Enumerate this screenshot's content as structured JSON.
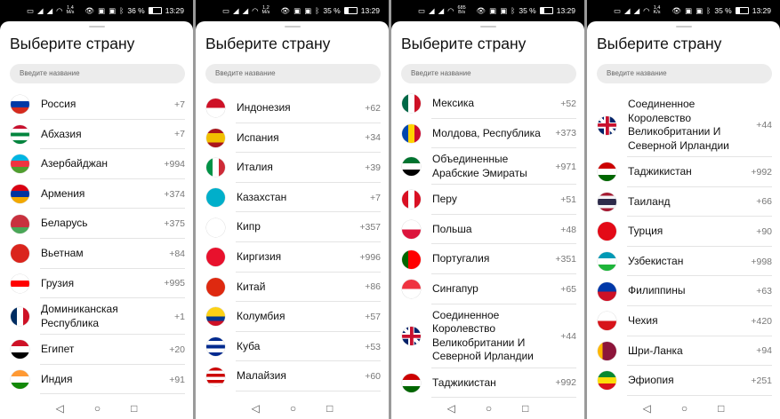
{
  "title": "Выберите страну",
  "search_placeholder": "Введите название",
  "nav": {
    "back": "◁",
    "home": "○",
    "recents": "□"
  },
  "panels": [
    {
      "status": {
        "speed_value": "1,4",
        "speed_unit": "M/s",
        "battery": "36 %",
        "battery_level": 36,
        "time": "13:29"
      },
      "list_offset": 0,
      "countries": [
        {
          "name": "Россия",
          "code": "+7",
          "flag": {
            "dir": "h",
            "colors": [
              "#ffffff",
              "#0039a6",
              "#d52b1e"
            ]
          }
        },
        {
          "name": "Абхазия",
          "code": "+7",
          "flag": {
            "dir": "h",
            "colors": [
              "#c8102e",
              "#ffffff",
              "#00843d",
              "#ffffff",
              "#00843d"
            ]
          }
        },
        {
          "name": "Азербайджан",
          "code": "+994",
          "flag": {
            "dir": "h",
            "colors": [
              "#00b5e2",
              "#ef3340",
              "#509e2f"
            ]
          }
        },
        {
          "name": "Армения",
          "code": "+374",
          "flag": {
            "dir": "h",
            "colors": [
              "#d90012",
              "#0033a0",
              "#f2a800"
            ]
          }
        },
        {
          "name": "Беларусь",
          "code": "+375",
          "flag": {
            "dir": "h",
            "colors": [
              "#c8313e",
              "#c8313e",
              "#4aa657"
            ]
          }
        },
        {
          "name": "Вьетнам",
          "code": "+84",
          "flag": {
            "dir": "h",
            "colors": [
              "#da251d"
            ]
          }
        },
        {
          "name": "Грузия",
          "code": "+995",
          "flag": {
            "dir": "h",
            "colors": [
              "#ffffff",
              "#ff0000",
              "#ffffff"
            ]
          }
        },
        {
          "name": "Доминиканская Республика",
          "code": "+1",
          "flag": {
            "dir": "v",
            "colors": [
              "#002d62",
              "#ffffff",
              "#ce1126"
            ]
          }
        },
        {
          "name": "Египет",
          "code": "+20",
          "flag": {
            "dir": "h",
            "colors": [
              "#ce1126",
              "#ffffff",
              "#000000"
            ]
          }
        },
        {
          "name": "Индия",
          "code": "+91",
          "flag": {
            "dir": "h",
            "colors": [
              "#ff9933",
              "#ffffff",
              "#138808"
            ]
          }
        }
      ]
    },
    {
      "status": {
        "speed_value": "1,2",
        "speed_unit": "M/s",
        "battery": "35 %",
        "battery_level": 35,
        "time": "13:29"
      },
      "list_offset": 4,
      "countries": [
        {
          "name": "Индонезия",
          "code": "+62",
          "flag": {
            "dir": "h",
            "colors": [
              "#ce1126",
              "#ffffff"
            ]
          }
        },
        {
          "name": "Испания",
          "code": "+34",
          "flag": {
            "dir": "h",
            "colors": [
              "#aa151b",
              "#f1bf00",
              "#f1bf00",
              "#aa151b"
            ]
          }
        },
        {
          "name": "Италия",
          "code": "+39",
          "flag": {
            "dir": "v",
            "colors": [
              "#009246",
              "#ffffff",
              "#ce2b37"
            ]
          }
        },
        {
          "name": "Казахстан",
          "code": "+7",
          "flag": {
            "dir": "h",
            "colors": [
              "#00afca"
            ]
          }
        },
        {
          "name": "Кипр",
          "code": "+357",
          "flag": {
            "dir": "h",
            "colors": [
              "#ffffff"
            ]
          }
        },
        {
          "name": "Киргизия",
          "code": "+996",
          "flag": {
            "dir": "h",
            "colors": [
              "#e8112d"
            ]
          }
        },
        {
          "name": "Китай",
          "code": "+86",
          "flag": {
            "dir": "h",
            "colors": [
              "#de2910"
            ]
          }
        },
        {
          "name": "Колумбия",
          "code": "+57",
          "flag": {
            "dir": "h",
            "colors": [
              "#fcd116",
              "#fcd116",
              "#003893",
              "#ce1126"
            ]
          }
        },
        {
          "name": "Куба",
          "code": "+53",
          "flag": {
            "dir": "h",
            "colors": [
              "#002a8f",
              "#ffffff",
              "#002a8f",
              "#ffffff",
              "#002a8f"
            ]
          }
        },
        {
          "name": "Малайзия",
          "code": "+60",
          "flag": {
            "dir": "h",
            "colors": [
              "#cc0001",
              "#ffffff",
              "#cc0001",
              "#ffffff",
              "#cc0001",
              "#ffffff"
            ]
          }
        }
      ]
    },
    {
      "status": {
        "speed_value": "685",
        "speed_unit": "B/s",
        "battery": "35 %",
        "battery_level": 35,
        "time": "13:29"
      },
      "list_offset": -1,
      "countries": [
        {
          "name": "Мексика",
          "code": "+52",
          "flag": {
            "dir": "v",
            "colors": [
              "#006847",
              "#ffffff",
              "#ce1126"
            ]
          }
        },
        {
          "name": "Молдова, Республика",
          "code": "+373",
          "flag": {
            "dir": "v",
            "colors": [
              "#0046ae",
              "#ffd200",
              "#cc092f"
            ]
          }
        },
        {
          "name": "Объединенные Арабские Эмираты",
          "code": "+971",
          "flag": {
            "dir": "h",
            "colors": [
              "#00732f",
              "#ffffff",
              "#000000"
            ]
          }
        },
        {
          "name": "Перу",
          "code": "+51",
          "flag": {
            "dir": "v",
            "colors": [
              "#d91023",
              "#ffffff",
              "#d91023"
            ]
          }
        },
        {
          "name": "Польша",
          "code": "+48",
          "flag": {
            "dir": "h",
            "colors": [
              "#ffffff",
              "#dc143c"
            ]
          }
        },
        {
          "name": "Португалия",
          "code": "+351",
          "flag": {
            "dir": "v",
            "colors": [
              "#006600",
              "#ff0000",
              "#ff0000"
            ]
          }
        },
        {
          "name": "Сингапур",
          "code": "+65",
          "flag": {
            "dir": "h",
            "colors": [
              "#ef3340",
              "#ffffff"
            ]
          }
        },
        {
          "name": "Соединенное Королевство Великобритании И Северной Ирландии",
          "code": "+44",
          "flag": {
            "dir": "uk",
            "colors": [
              "#012169",
              "#ffffff",
              "#c8102e"
            ]
          }
        },
        {
          "name": "Таджикистан",
          "code": "+992",
          "flag": {
            "dir": "h",
            "colors": [
              "#cc0000",
              "#ffffff",
              "#006600"
            ]
          }
        }
      ]
    },
    {
      "status": {
        "speed_value": "1,4",
        "speed_unit": "K/s",
        "battery": "35 %",
        "battery_level": 35,
        "time": "13:29"
      },
      "list_offset": 4,
      "countries": [
        {
          "name": "Соединенное Королевство Великобритании И Северной Ирландии",
          "code": "+44",
          "flag": {
            "dir": "uk",
            "colors": [
              "#012169",
              "#ffffff",
              "#c8102e"
            ]
          }
        },
        {
          "name": "Таджикистан",
          "code": "+992",
          "flag": {
            "dir": "h",
            "colors": [
              "#cc0000",
              "#ffffff",
              "#006600"
            ]
          }
        },
        {
          "name": "Таиланд",
          "code": "+66",
          "flag": {
            "dir": "h",
            "colors": [
              "#a51931",
              "#f4f5f8",
              "#2d2a4a",
              "#2d2a4a",
              "#f4f5f8",
              "#a51931"
            ]
          }
        },
        {
          "name": "Турция",
          "code": "+90",
          "flag": {
            "dir": "h",
            "colors": [
              "#e30a17"
            ]
          }
        },
        {
          "name": "Узбекистан",
          "code": "+998",
          "flag": {
            "dir": "h",
            "colors": [
              "#0099b5",
              "#ffffff",
              "#1eb53a"
            ]
          }
        },
        {
          "name": "Филиппины",
          "code": "+63",
          "flag": {
            "dir": "h",
            "colors": [
              "#0038a8",
              "#ce1126"
            ]
          }
        },
        {
          "name": "Чехия",
          "code": "+420",
          "flag": {
            "dir": "h",
            "colors": [
              "#ffffff",
              "#d7141a"
            ]
          }
        },
        {
          "name": "Шри-Ланка",
          "code": "+94",
          "flag": {
            "dir": "v",
            "colors": [
              "#ffb700",
              "#8d153a",
              "#8d153a",
              "#8d153a"
            ]
          }
        },
        {
          "name": "Эфиопия",
          "code": "+251",
          "flag": {
            "dir": "h",
            "colors": [
              "#078930",
              "#fcdd09",
              "#da121a"
            ]
          }
        }
      ]
    }
  ]
}
